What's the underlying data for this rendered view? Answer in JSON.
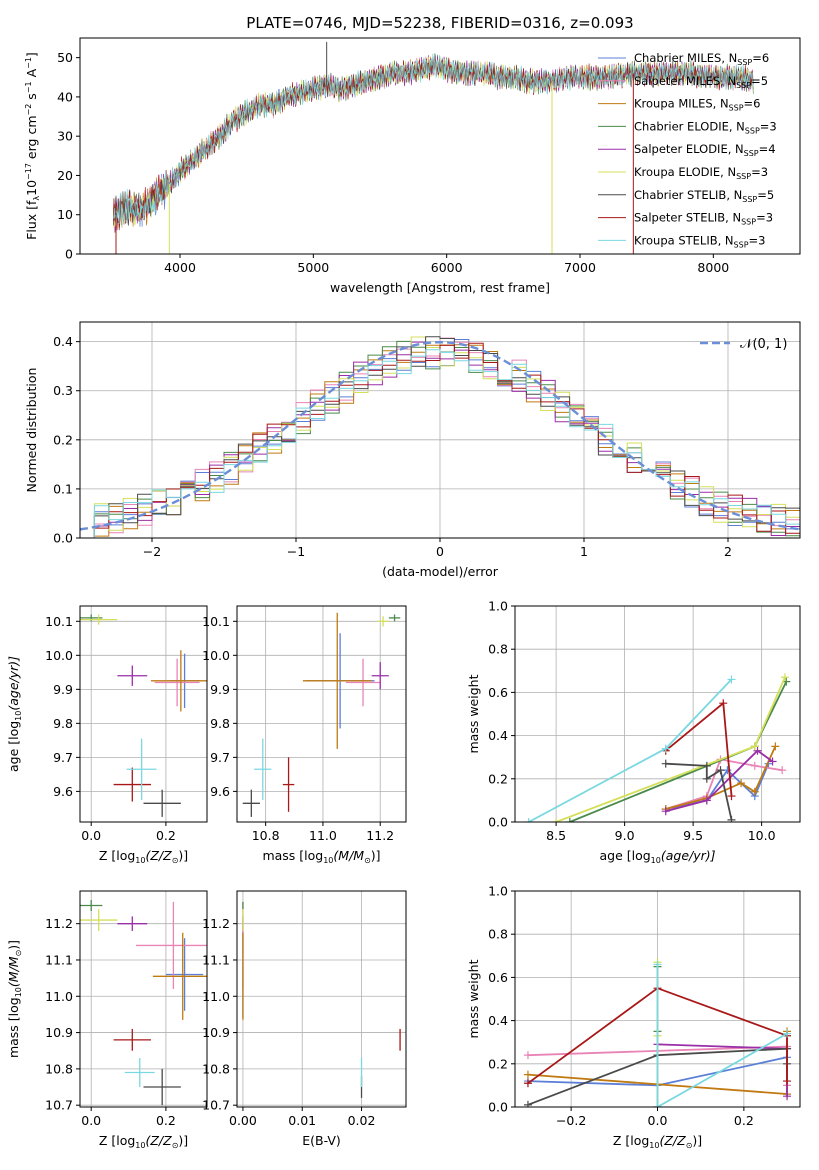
{
  "title": "PLATE=0746, MJD=52238, FIBERID=0316, z=0.093",
  "colors": {
    "cM": "#5b7fd6",
    "sM": "#e884b6",
    "kM": "#c07a12",
    "cE": "#4a8a4a",
    "sE": "#9a2ea8",
    "kE": "#d4df5a",
    "cS": "#4a4a4a",
    "sS": "#a81818",
    "kS": "#7ad8e0",
    "gauss": "#6a8fd8"
  },
  "chart_data": [
    {
      "id": "spectrum",
      "type": "line",
      "xlabel": "wavelength [Angstrom, rest frame]",
      "ylabel": "Flux [f",
      "xlim": [
        3250,
        8650
      ],
      "ylim": [
        0,
        55
      ],
      "xticks": [
        4000,
        5000,
        6000,
        7000,
        8000
      ],
      "yticks": [
        0,
        10,
        20,
        30,
        40,
        50
      ],
      "grid": false,
      "legend_position": "upper-right",
      "legend": [
        {
          "name": "Chabrier MILES, N",
          "sub": "SSP",
          "eq": "=6",
          "color": "cM"
        },
        {
          "name": "Salpeter MILES, N",
          "sub": "SSP",
          "eq": "=5",
          "color": "sM"
        },
        {
          "name": "Kroupa MILES, N",
          "sub": "SSP",
          "eq": "=6",
          "color": "kM"
        },
        {
          "name": "Chabrier ELODIE, N",
          "sub": "SSP",
          "eq": "=3",
          "color": "cE"
        },
        {
          "name": "Salpeter ELODIE, N",
          "sub": "SSP",
          "eq": "=4",
          "color": "sE"
        },
        {
          "name": "Kroupa ELODIE, N",
          "sub": "SSP",
          "eq": "=3",
          "color": "kE"
        },
        {
          "name": "Chabrier STELIB, N",
          "sub": "SSP",
          "eq": "=5",
          "color": "cS"
        },
        {
          "name": "Salpeter STELIB, N",
          "sub": "SSP",
          "eq": "=3",
          "color": "sS"
        },
        {
          "name": "Kroupa STELIB, N",
          "sub": "SSP",
          "eq": "=3",
          "color": "kS"
        }
      ],
      "continuum": [
        [
          3500,
          10
        ],
        [
          3600,
          12
        ],
        [
          3700,
          11
        ],
        [
          3800,
          14
        ],
        [
          3900,
          17
        ],
        [
          4000,
          21
        ],
        [
          4100,
          24
        ],
        [
          4200,
          27
        ],
        [
          4300,
          30
        ],
        [
          4400,
          34
        ],
        [
          4500,
          36
        ],
        [
          4600,
          38
        ],
        [
          4700,
          38
        ],
        [
          4800,
          40
        ],
        [
          4900,
          41
        ],
        [
          5000,
          42
        ],
        [
          5100,
          43
        ],
        [
          5200,
          42
        ],
        [
          5300,
          43
        ],
        [
          5400,
          44
        ],
        [
          5500,
          45
        ],
        [
          5600,
          46
        ],
        [
          5700,
          46
        ],
        [
          5800,
          47
        ],
        [
          5900,
          48
        ],
        [
          6000,
          47
        ],
        [
          6100,
          46
        ],
        [
          6200,
          46
        ],
        [
          6300,
          46
        ],
        [
          6400,
          45
        ],
        [
          6500,
          45
        ],
        [
          6600,
          44
        ],
        [
          6700,
          44
        ],
        [
          6800,
          44
        ],
        [
          6900,
          45
        ],
        [
          7000,
          45
        ],
        [
          7200,
          45
        ],
        [
          7400,
          46
        ],
        [
          7600,
          46
        ],
        [
          7800,
          46
        ],
        [
          8000,
          45
        ],
        [
          8200,
          45
        ],
        [
          8300,
          44
        ]
      ],
      "spikes": [
        {
          "x": 3520,
          "y": 0,
          "color": "sS"
        },
        {
          "x": 3920,
          "y": 0,
          "color": "kE"
        },
        {
          "x": 5100,
          "y": 54,
          "color": "cS"
        },
        {
          "x": 6790,
          "y": 0,
          "color": "kE"
        },
        {
          "x": 7400,
          "y": 0,
          "color": "sS"
        }
      ]
    },
    {
      "id": "residual",
      "type": "histogram",
      "xlabel": "(data-model)/error",
      "ylabel": "Normed distribution",
      "xlim": [
        -2.5,
        2.5
      ],
      "ylim": [
        0,
        0.44
      ],
      "xticks": [
        -2,
        -1,
        0,
        1,
        2
      ],
      "yticks": [
        0.0,
        0.1,
        0.2,
        0.3,
        0.4
      ],
      "grid": true,
      "legend_position": "upper-right",
      "gauss_label": "𝒩(0, 1)",
      "bin_width": 0.1
    },
    {
      "id": "age-vs-Z",
      "type": "scatter",
      "xlabel": "Z [log",
      "xlabel_tail": "(Z/Z",
      "ylabel": "age  [log",
      "ylabel_tail": "(age/yr)]",
      "xlim": [
        -0.03,
        0.31
      ],
      "ylim": [
        9.51,
        10.145
      ],
      "xticks": [
        0.0,
        0.2
      ],
      "yticks": [
        9.6,
        9.7,
        9.8,
        9.9,
        10.0,
        10.1
      ],
      "grid": true,
      "points": [
        {
          "x": 0.25,
          "y": 9.925,
          "dx": 0.04,
          "dy": 0.08,
          "c": "cM"
        },
        {
          "x": 0.23,
          "y": 9.92,
          "dx": 0.06,
          "dy": 0.07,
          "c": "sM"
        },
        {
          "x": 0.24,
          "y": 9.925,
          "dx": 0.08,
          "dy": 0.09,
          "c": "kM"
        },
        {
          "x": 0.0,
          "y": 10.11,
          "dx": 0.03,
          "dy": 0.01,
          "c": "cE"
        },
        {
          "x": 0.11,
          "y": 9.94,
          "dx": 0.04,
          "dy": 0.03,
          "c": "sE"
        },
        {
          "x": 0.02,
          "y": 10.105,
          "dx": 0.05,
          "dy": 0.015,
          "c": "kE"
        },
        {
          "x": 0.19,
          "y": 9.565,
          "dx": 0.05,
          "dy": 0.04,
          "c": "cS"
        },
        {
          "x": 0.11,
          "y": 9.62,
          "dx": 0.05,
          "dy": 0.05,
          "c": "sS"
        },
        {
          "x": 0.135,
          "y": 9.665,
          "dx": 0.04,
          "dy": 0.09,
          "c": "kS"
        }
      ]
    },
    {
      "id": "age-vs-mass",
      "type": "scatter",
      "xlabel": "mass [log",
      "xlabel_tail": "(M/M",
      "ylabel": "",
      "xlim": [
        10.7,
        11.29
      ],
      "ylim": [
        9.51,
        10.145
      ],
      "xticks": [
        10.8,
        11.0,
        11.2
      ],
      "yticks": [
        9.6,
        9.7,
        9.8,
        9.9,
        10.0,
        10.1
      ],
      "grid": true,
      "points": [
        {
          "x": 11.06,
          "y": 9.925,
          "dx": 0.12,
          "dy": 0.14,
          "c": "cM"
        },
        {
          "x": 11.14,
          "y": 9.92,
          "dx": 0.06,
          "dy": 0.07,
          "c": "sM"
        },
        {
          "x": 11.05,
          "y": 9.925,
          "dx": 0.12,
          "dy": 0.2,
          "c": "kM"
        },
        {
          "x": 11.25,
          "y": 10.11,
          "dx": 0.02,
          "dy": 0.01,
          "c": "cE"
        },
        {
          "x": 11.2,
          "y": 9.94,
          "dx": 0.03,
          "dy": 0.04,
          "c": "sE"
        },
        {
          "x": 11.21,
          "y": 10.1,
          "dx": 0.02,
          "dy": 0.015,
          "c": "kE"
        },
        {
          "x": 10.75,
          "y": 9.565,
          "dx": 0.03,
          "dy": 0.04,
          "c": "cS"
        },
        {
          "x": 10.88,
          "y": 9.62,
          "dx": 0.02,
          "dy": 0.08,
          "c": "sS"
        },
        {
          "x": 10.79,
          "y": 9.665,
          "dx": 0.03,
          "dy": 0.09,
          "c": "kS"
        }
      ]
    },
    {
      "id": "mass-weight-vs-age",
      "type": "line",
      "xlabel": "age  [log",
      "xlabel_tail": "(age/yr)]",
      "ylabel": "mass weight",
      "xlim": [
        8.2,
        10.28
      ],
      "ylim": [
        0,
        1
      ],
      "xticks": [
        8.5,
        9.0,
        9.5,
        10.0
      ],
      "yticks": [
        0.0,
        0.2,
        0.4,
        0.6,
        0.8,
        1.0
      ],
      "grid": true,
      "series": [
        {
          "c": "cM",
          "pts": [
            [
              9.3,
              0.06
            ],
            [
              9.6,
              0.1
            ],
            [
              9.75,
              0.24
            ],
            [
              9.95,
              0.12
            ],
            [
              10.05,
              0.27
            ]
          ]
        },
        {
          "c": "sM",
          "pts": [
            [
              9.3,
              0.06
            ],
            [
              9.6,
              0.12
            ],
            [
              9.7,
              0.29
            ],
            [
              9.95,
              0.26
            ],
            [
              10.15,
              0.24
            ]
          ]
        },
        {
          "c": "kM",
          "pts": [
            [
              9.3,
              0.06
            ],
            [
              9.6,
              0.11
            ],
            [
              9.85,
              0.18
            ],
            [
              9.95,
              0.14
            ],
            [
              10.1,
              0.35
            ]
          ]
        },
        {
          "c": "cE",
          "pts": [
            [
              8.6,
              0
            ],
            [
              9.95,
              0.35
            ],
            [
              10.18,
              0.65
            ]
          ]
        },
        {
          "c": "sE",
          "pts": [
            [
              9.3,
              0.05
            ],
            [
              9.6,
              0.1
            ],
            [
              9.97,
              0.33
            ],
            [
              10.08,
              0.28
            ]
          ]
        },
        {
          "c": "kE",
          "pts": [
            [
              8.5,
              0
            ],
            [
              9.95,
              0.35
            ],
            [
              10.17,
              0.67
            ]
          ]
        },
        {
          "c": "cS",
          "pts": [
            [
              9.3,
              0.27
            ],
            [
              9.6,
              0.26
            ],
            [
              9.6,
              0.2
            ],
            [
              9.7,
              0.24
            ],
            [
              9.78,
              0.01
            ]
          ]
        },
        {
          "c": "sS",
          "pts": [
            [
              9.3,
              0.33
            ],
            [
              9.72,
              0.55
            ],
            [
              9.78,
              0.12
            ]
          ]
        },
        {
          "c": "kS",
          "pts": [
            [
              8.3,
              0
            ],
            [
              9.3,
              0.34
            ],
            [
              9.78,
              0.66
            ]
          ]
        }
      ]
    },
    {
      "id": "mass-vs-Z",
      "type": "scatter",
      "xlabel": "Z [log",
      "xlabel_tail": "(Z/Z",
      "ylabel": "mass [log",
      "ylabel_tail": "(M/M",
      "xlim": [
        -0.03,
        0.31
      ],
      "ylim": [
        10.695,
        11.29
      ],
      "xticks": [
        0.0,
        0.2
      ],
      "yticks": [
        10.7,
        10.8,
        10.9,
        11.0,
        11.1,
        11.2
      ],
      "grid": true,
      "points": [
        {
          "x": 0.25,
          "y": 11.06,
          "dx": 0.05,
          "dy": 0.1,
          "c": "cM"
        },
        {
          "x": 0.22,
          "y": 11.14,
          "dx": 0.1,
          "dy": 0.12,
          "c": "sM"
        },
        {
          "x": 0.245,
          "y": 11.055,
          "dx": 0.08,
          "dy": 0.12,
          "c": "kM"
        },
        {
          "x": 0.0,
          "y": 11.25,
          "dx": 0.03,
          "dy": 0.015,
          "c": "cE"
        },
        {
          "x": 0.11,
          "y": 11.2,
          "dx": 0.04,
          "dy": 0.02,
          "c": "sE"
        },
        {
          "x": 0.02,
          "y": 11.21,
          "dx": 0.05,
          "dy": 0.03,
          "c": "kE"
        },
        {
          "x": 0.19,
          "y": 10.75,
          "dx": 0.05,
          "dy": 0.05,
          "c": "cS"
        },
        {
          "x": 0.11,
          "y": 10.88,
          "dx": 0.05,
          "dy": 0.03,
          "c": "sS"
        },
        {
          "x": 0.13,
          "y": 10.79,
          "dx": 0.04,
          "dy": 0.04,
          "c": "kS"
        }
      ]
    },
    {
      "id": "mass-vs-EBV",
      "type": "scatter",
      "xlabel": "E(B-V)",
      "ylabel": "",
      "xlim": [
        -0.001,
        0.0275
      ],
      "ylim": [
        10.695,
        11.29
      ],
      "xticks": [
        0.0,
        0.01,
        0.02
      ],
      "yticks": [
        10.7,
        10.8,
        10.9,
        11.0,
        11.1,
        11.2
      ],
      "grid": true,
      "points": [
        {
          "x": 0.0,
          "y": 11.06,
          "dx": 0,
          "dy": 0.12,
          "c": "cM"
        },
        {
          "x": 0.0,
          "y": 11.14,
          "dx": 0,
          "dy": 0.12,
          "c": "sM"
        },
        {
          "x": 0.0,
          "y": 11.055,
          "dx": 0,
          "dy": 0.12,
          "c": "kM"
        },
        {
          "x": 0.0,
          "y": 11.25,
          "dx": 0,
          "dy": 0.01,
          "c": "cE"
        },
        {
          "x": 0.0,
          "y": 11.2,
          "dx": 0,
          "dy": 0.02,
          "c": "sE"
        },
        {
          "x": 0.0,
          "y": 11.21,
          "dx": 0,
          "dy": 0.03,
          "c": "kE"
        },
        {
          "x": 0.02,
          "y": 10.75,
          "dx": 0,
          "dy": 0.03,
          "c": "cS"
        },
        {
          "x": 0.0265,
          "y": 10.88,
          "dx": 0,
          "dy": 0.03,
          "c": "sS"
        },
        {
          "x": 0.02,
          "y": 10.79,
          "dx": 0,
          "dy": 0.04,
          "c": "kS"
        }
      ]
    },
    {
      "id": "mass-weight-vs-Z",
      "type": "line",
      "xlabel": "Z [log",
      "xlabel_tail": "(Z/Z",
      "ylabel": "mass weight",
      "xlim": [
        -0.33,
        0.33
      ],
      "ylim": [
        0,
        1
      ],
      "xticks": [
        -0.2,
        0.0,
        0.2
      ],
      "yticks": [
        0.0,
        0.2,
        0.4,
        0.6,
        0.8,
        1.0
      ],
      "grid": true,
      "series": [
        {
          "c": "cM",
          "pts": [
            [
              -0.3,
              0.12
            ],
            [
              0.0,
              0.1
            ],
            [
              0.3,
              0.23
            ],
            [
              0.3,
              0.06
            ]
          ]
        },
        {
          "c": "sM",
          "pts": [
            [
              -0.3,
              0.24
            ],
            [
              0.3,
              0.28
            ],
            [
              0.3,
              0.1
            ]
          ]
        },
        {
          "c": "kM",
          "pts": [
            [
              -0.3,
              0.15
            ],
            [
              0.3,
              0.06
            ],
            [
              0.3,
              0.35
            ]
          ]
        },
        {
          "c": "cE",
          "pts": [
            [
              0.0,
              0.65
            ],
            [
              0.0,
              0.35
            ],
            [
              0.0,
              0.0
            ]
          ]
        },
        {
          "c": "sE",
          "pts": [
            [
              0.0,
              0.29
            ],
            [
              0.3,
              0.27
            ],
            [
              0.3,
              0.05
            ]
          ]
        },
        {
          "c": "kE",
          "pts": [
            [
              0.0,
              0.67
            ],
            [
              0.0,
              0.33
            ],
            [
              0.0,
              0.0
            ]
          ]
        },
        {
          "c": "cS",
          "pts": [
            [
              -0.3,
              0.01
            ],
            [
              0.0,
              0.24
            ],
            [
              0.3,
              0.27
            ],
            [
              0.3,
              0.2
            ]
          ]
        },
        {
          "c": "sS",
          "pts": [
            [
              -0.3,
              0.11
            ],
            [
              0.0,
              0.55
            ],
            [
              0.3,
              0.33
            ],
            [
              0.3,
              0.12
            ]
          ]
        },
        {
          "c": "kS",
          "pts": [
            [
              0.0,
              0.66
            ],
            [
              0.0,
              0.0
            ],
            [
              0.3,
              0.34
            ]
          ]
        }
      ]
    }
  ]
}
